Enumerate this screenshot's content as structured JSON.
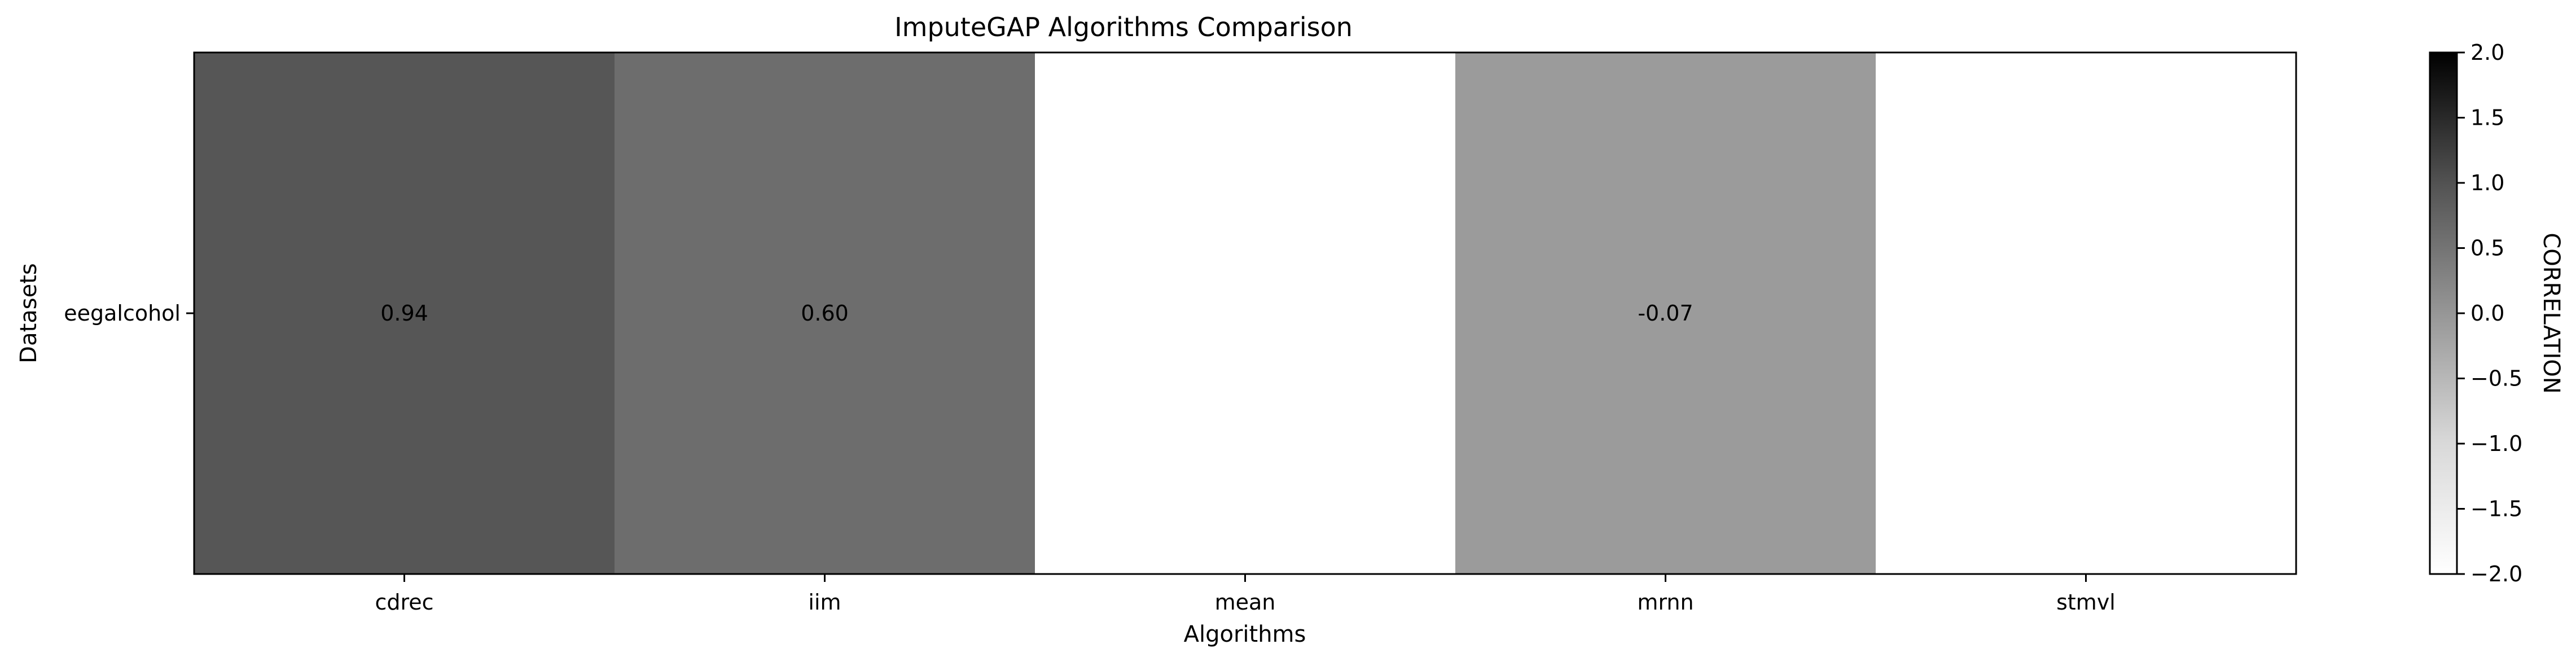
{
  "chart_data": {
    "type": "heatmap",
    "title": "ImputeGAP Algorithms Comparison",
    "xlabel": "Algorithms",
    "ylabel": "Datasets",
    "x_categories": [
      "cdrec",
      "iim",
      "mean",
      "mrnn",
      "stmvl"
    ],
    "y_categories": [
      "eegalcohol"
    ],
    "values": [
      [
        0.94,
        0.6,
        null,
        -0.07,
        null
      ]
    ],
    "value_labels": [
      [
        "0.94",
        "0.60",
        "",
        "-0.07",
        ""
      ]
    ],
    "colorbar": {
      "label": "CORRELATION",
      "range": [
        -2.0,
        2.0
      ],
      "ticks": [
        2.0,
        1.5,
        1.0,
        0.5,
        0.0,
        -0.5,
        -1.0,
        -1.5,
        -2.0
      ],
      "tick_labels": [
        "2.0",
        "1.5",
        "1.0",
        "0.5",
        "0.0",
        "−0.5",
        "−1.0",
        "−1.5",
        "−2.0"
      ],
      "colormap": "Greys",
      "low_color": "#ffffff",
      "high_color": "#000000"
    },
    "grid": false
  }
}
